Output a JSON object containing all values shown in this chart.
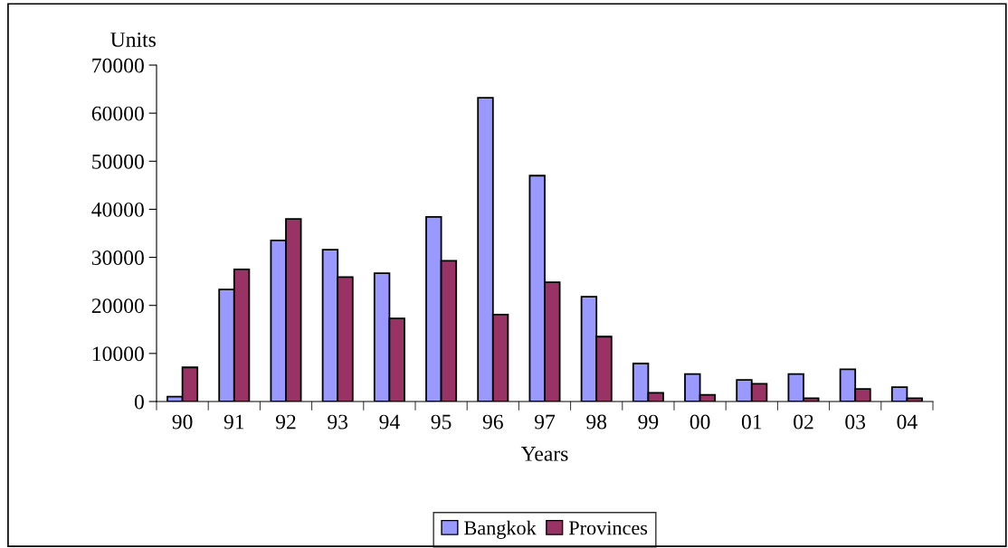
{
  "chart_data": {
    "type": "bar",
    "xlabel": "Years",
    "ylabel": "Units",
    "categories": [
      "90",
      "91",
      "92",
      "93",
      "94",
      "95",
      "96",
      "97",
      "98",
      "99",
      "00",
      "01",
      "02",
      "03",
      "04"
    ],
    "series": [
      {
        "name": "Bangkok",
        "color": "#9999ff",
        "values": [
          1000,
          23300,
          33500,
          31600,
          26700,
          38400,
          63200,
          47000,
          21800,
          7900,
          5700,
          4500,
          5700,
          6700,
          3000
        ]
      },
      {
        "name": "Provinces",
        "color": "#993366",
        "values": [
          7100,
          27500,
          38000,
          25900,
          17300,
          29300,
          18100,
          24800,
          13500,
          1800,
          1400,
          3700,
          700,
          2600,
          700
        ]
      }
    ],
    "ylim": [
      0,
      70000
    ],
    "yticks": [
      0,
      10000,
      20000,
      30000,
      40000,
      50000,
      60000,
      70000
    ],
    "grid": false,
    "legend": "bottom"
  }
}
